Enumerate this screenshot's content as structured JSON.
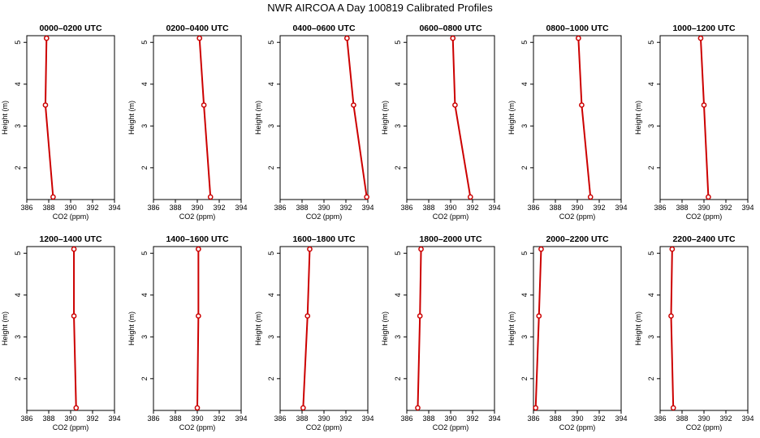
{
  "title": "NWR AIRCOA A  Day 100819  Calibrated Profiles",
  "chart_data": [
    {
      "type": "line",
      "title": "0000–0200 UTC",
      "xlabel": "CO2 (ppm)",
      "ylabel": "Height (m)",
      "xlim": [
        386,
        394
      ],
      "ylim": [
        1.3,
        5.1
      ],
      "x_ticks": [
        "386",
        "388",
        "390",
        "392",
        "394"
      ],
      "y_ticks": [
        "2",
        "3",
        "4",
        "5"
      ],
      "series": [
        {
          "name": "profile",
          "x": [
            388.4,
            387.7,
            387.8
          ],
          "y": [
            1.3,
            3.5,
            5.1
          ]
        }
      ]
    },
    {
      "type": "line",
      "title": "0200–0400 UTC",
      "xlabel": "CO2 (ppm)",
      "ylabel": "Height (m)",
      "xlim": [
        386,
        394
      ],
      "ylim": [
        1.3,
        5.1
      ],
      "x_ticks": [
        "386",
        "388",
        "390",
        "392",
        "394"
      ],
      "y_ticks": [
        "2",
        "3",
        "4",
        "5"
      ],
      "series": [
        {
          "name": "profile",
          "x": [
            391.2,
            390.6,
            390.2
          ],
          "y": [
            1.3,
            3.5,
            5.1
          ]
        }
      ]
    },
    {
      "type": "line",
      "title": "0400–0600 UTC",
      "xlabel": "CO2 (ppm)",
      "ylabel": "Height (m)",
      "xlim": [
        386,
        394
      ],
      "ylim": [
        1.3,
        5.1
      ],
      "x_ticks": [
        "386",
        "388",
        "390",
        "392",
        "394"
      ],
      "y_ticks": [
        "2",
        "3",
        "4",
        "5"
      ],
      "series": [
        {
          "name": "profile",
          "x": [
            393.9,
            392.7,
            392.1
          ],
          "y": [
            1.3,
            3.5,
            5.1
          ]
        }
      ]
    },
    {
      "type": "line",
      "title": "0600–0800 UTC",
      "xlabel": "CO2 (ppm)",
      "ylabel": "Height (m)",
      "xlim": [
        386,
        394
      ],
      "ylim": [
        1.3,
        5.1
      ],
      "x_ticks": [
        "386",
        "388",
        "390",
        "392",
        "394"
      ],
      "y_ticks": [
        "2",
        "3",
        "4",
        "5"
      ],
      "series": [
        {
          "name": "profile",
          "x": [
            391.8,
            390.4,
            390.2
          ],
          "y": [
            1.3,
            3.5,
            5.1
          ]
        }
      ]
    },
    {
      "type": "line",
      "title": "0800–1000 UTC",
      "xlabel": "CO2 (ppm)",
      "ylabel": "Height (m)",
      "xlim": [
        386,
        394
      ],
      "ylim": [
        1.3,
        5.1
      ],
      "x_ticks": [
        "386",
        "388",
        "390",
        "392",
        "394"
      ],
      "y_ticks": [
        "2",
        "3",
        "4",
        "5"
      ],
      "series": [
        {
          "name": "profile",
          "x": [
            391.2,
            390.4,
            390.1
          ],
          "y": [
            1.3,
            3.5,
            5.1
          ]
        }
      ]
    },
    {
      "type": "line",
      "title": "1000–1200 UTC",
      "xlabel": "CO2 (ppm)",
      "ylabel": "Height (m)",
      "xlim": [
        386,
        394
      ],
      "ylim": [
        1.3,
        5.1
      ],
      "x_ticks": [
        "386",
        "388",
        "390",
        "392",
        "394"
      ],
      "y_ticks": [
        "2",
        "3",
        "4",
        "5"
      ],
      "series": [
        {
          "name": "profile",
          "x": [
            390.4,
            390.0,
            389.7
          ],
          "y": [
            1.3,
            3.5,
            5.1
          ]
        }
      ]
    },
    {
      "type": "line",
      "title": "1200–1400 UTC",
      "xlabel": "CO2 (ppm)",
      "ylabel": "Height (m)",
      "xlim": [
        386,
        394
      ],
      "ylim": [
        1.3,
        5.1
      ],
      "x_ticks": [
        "386",
        "388",
        "390",
        "392",
        "394"
      ],
      "y_ticks": [
        "2",
        "3",
        "4",
        "5"
      ],
      "series": [
        {
          "name": "profile",
          "x": [
            390.5,
            390.3,
            390.3
          ],
          "y": [
            1.3,
            3.5,
            5.1
          ]
        }
      ]
    },
    {
      "type": "line",
      "title": "1400–1600 UTC",
      "xlabel": "CO2 (ppm)",
      "ylabel": "Height (m)",
      "xlim": [
        386,
        394
      ],
      "ylim": [
        1.3,
        5.1
      ],
      "x_ticks": [
        "386",
        "388",
        "390",
        "392",
        "394"
      ],
      "y_ticks": [
        "2",
        "3",
        "4",
        "5"
      ],
      "series": [
        {
          "name": "profile",
          "x": [
            390.0,
            390.1,
            390.1
          ],
          "y": [
            1.3,
            3.5,
            5.1
          ]
        }
      ]
    },
    {
      "type": "line",
      "title": "1600–1800 UTC",
      "xlabel": "CO2 (ppm)",
      "ylabel": "Height (m)",
      "xlim": [
        386,
        394
      ],
      "ylim": [
        1.3,
        5.1
      ],
      "x_ticks": [
        "386",
        "388",
        "390",
        "392",
        "394"
      ],
      "y_ticks": [
        "2",
        "3",
        "4",
        "5"
      ],
      "series": [
        {
          "name": "profile",
          "x": [
            388.1,
            388.5,
            388.7
          ],
          "y": [
            1.3,
            3.5,
            5.1
          ]
        }
      ]
    },
    {
      "type": "line",
      "title": "1800–2000 UTC",
      "xlabel": "CO2 (ppm)",
      "ylabel": "Height (m)",
      "xlim": [
        386,
        394
      ],
      "ylim": [
        1.3,
        5.1
      ],
      "x_ticks": [
        "386",
        "388",
        "390",
        "392",
        "394"
      ],
      "y_ticks": [
        "2",
        "3",
        "4",
        "5"
      ],
      "series": [
        {
          "name": "profile",
          "x": [
            387.0,
            387.2,
            387.3
          ],
          "y": [
            1.3,
            3.5,
            5.1
          ]
        }
      ]
    },
    {
      "type": "line",
      "title": "2000–2200 UTC",
      "xlabel": "CO2 (ppm)",
      "ylabel": "Height (m)",
      "xlim": [
        386,
        394
      ],
      "ylim": [
        1.3,
        5.1
      ],
      "x_ticks": [
        "386",
        "388",
        "390",
        "392",
        "394"
      ],
      "y_ticks": [
        "2",
        "3",
        "4",
        "5"
      ],
      "series": [
        {
          "name": "profile",
          "x": [
            386.2,
            386.5,
            386.7
          ],
          "y": [
            1.3,
            3.5,
            5.1
          ]
        }
      ]
    },
    {
      "type": "line",
      "title": "2200–2400 UTC",
      "xlabel": "CO2 (ppm)",
      "ylabel": "Height (m)",
      "xlim": [
        386,
        394
      ],
      "ylim": [
        1.3,
        5.1
      ],
      "x_ticks": [
        "386",
        "388",
        "390",
        "392",
        "394"
      ],
      "y_ticks": [
        "2",
        "3",
        "4",
        "5"
      ],
      "series": [
        {
          "name": "profile",
          "x": [
            387.2,
            387.0,
            387.1
          ],
          "y": [
            1.3,
            3.5,
            5.1
          ]
        }
      ]
    }
  ],
  "colors": {
    "line": "#cc0000",
    "axis": "#000000"
  }
}
